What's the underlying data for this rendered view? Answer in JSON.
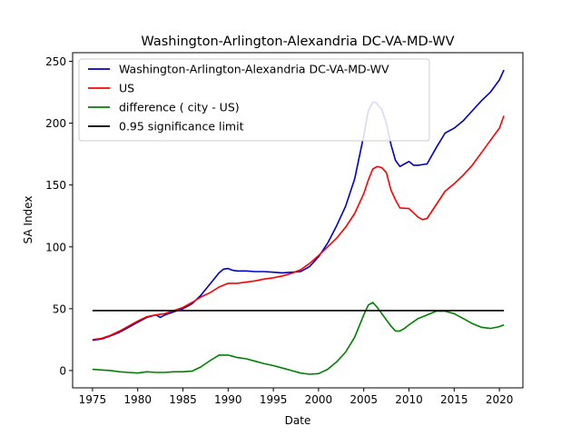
{
  "chart_data": {
    "type": "line",
    "title": "Washington-Arlington-Alexandria DC-VA-MD-WV",
    "xlabel": "Date",
    "ylabel": "SA Index",
    "xlim": [
      1972.8,
      2022.6
    ],
    "ylim": [
      -14,
      257
    ],
    "xticks": [
      "1975",
      "1980",
      "1985",
      "1990",
      "1995",
      "2000",
      "2005",
      "2010",
      "2015",
      "2020"
    ],
    "yticks": [
      "0",
      "50",
      "100",
      "150",
      "200",
      "250"
    ],
    "grid": false,
    "legend_position": "top-left",
    "series": [
      {
        "name": "Washington-Arlington-Alexandria DC-VA-MD-WV",
        "color": "#0000cc",
        "x": [
          1975,
          1976,
          1977,
          1978,
          1979,
          1980,
          1981,
          1982,
          1982.5,
          1983,
          1984,
          1985,
          1986,
          1987,
          1988,
          1989,
          1989.5,
          1990,
          1990.5,
          1991,
          1992,
          1993,
          1994,
          1995,
          1996,
          1997,
          1998,
          1999,
          2000,
          2001,
          2002,
          2003,
          2004,
          2005,
          2005.5,
          2006,
          2006.3,
          2007,
          2007.5,
          2008,
          2008.5,
          2009,
          2009.5,
          2010,
          2010.5,
          2011,
          2012,
          2013,
          2014,
          2015,
          2016,
          2017,
          2018,
          2019,
          2020,
          2020.5
        ],
        "y": [
          24.5,
          25.5,
          28,
          31,
          35,
          39,
          43,
          45,
          43,
          45,
          47.5,
          50,
          54,
          61,
          70,
          79,
          82,
          82.5,
          81,
          80.5,
          80.5,
          80,
          80,
          79.5,
          79,
          79.5,
          80,
          84,
          92,
          103,
          117,
          133,
          155,
          190,
          210,
          217,
          217,
          211,
          200,
          183,
          170,
          165,
          167,
          169,
          166,
          166,
          167,
          180,
          192,
          196,
          202,
          210,
          218,
          225,
          235,
          243
        ]
      },
      {
        "name": "US",
        "color": "#ff0000",
        "x": [
          1975,
          1976,
          1977,
          1978,
          1979,
          1980,
          1981,
          1982,
          1983,
          1984,
          1985,
          1986,
          1987,
          1988,
          1989,
          1990,
          1991,
          1992,
          1993,
          1994,
          1995,
          1996,
          1997,
          1998,
          1999,
          2000,
          2001,
          2002,
          2003,
          2004,
          2005,
          2005.5,
          2006,
          2006.5,
          2007,
          2007.5,
          2008,
          2008.5,
          2009,
          2010,
          2011,
          2011.5,
          2012,
          2013,
          2014,
          2015,
          2016,
          2017,
          2018,
          2019,
          2020,
          2020.5
        ],
        "y": [
          25,
          26,
          28.5,
          32,
          36,
          40,
          43.5,
          45,
          46,
          48.5,
          51,
          55,
          59.5,
          63,
          67.5,
          70.5,
          70.5,
          71.5,
          72.5,
          74,
          75,
          76.5,
          78.5,
          81.5,
          86.5,
          93,
          100,
          107,
          116,
          127,
          143,
          154,
          163,
          165,
          164,
          160,
          146,
          138,
          131.5,
          131,
          124,
          122,
          123,
          134,
          145,
          151,
          158,
          166,
          176,
          186,
          196,
          206
        ]
      },
      {
        "name": "difference ( city - US)",
        "color": "#008000",
        "x": [
          1975,
          1976,
          1977,
          1978,
          1979,
          1980,
          1981,
          1982,
          1983,
          1984,
          1985,
          1986,
          1987,
          1988,
          1989,
          1990,
          1991,
          1992,
          1993,
          1994,
          1995,
          1996,
          1997,
          1998,
          1999,
          2000,
          2001,
          2002,
          2003,
          2004,
          2005,
          2005.5,
          2006,
          2006.5,
          2007,
          2007.5,
          2008,
          2008.5,
          2009,
          2009.5,
          2010,
          2011,
          2012,
          2013,
          2014,
          2015,
          2016,
          2017,
          2018,
          2019,
          2020,
          2020.5
        ],
        "y": [
          1,
          0.5,
          0,
          -1,
          -1.5,
          -2,
          -1,
          -1.5,
          -1.5,
          -1,
          -1,
          -0.5,
          3,
          8,
          12.5,
          12.5,
          10.5,
          9.5,
          7.5,
          5.5,
          4,
          2,
          0,
          -2,
          -3,
          -2.5,
          1,
          7,
          15,
          27,
          45,
          53,
          55,
          51,
          46,
          41,
          36,
          32,
          32,
          34,
          37,
          42,
          45,
          48,
          48,
          46,
          42,
          38,
          35,
          34,
          35.5,
          37
        ]
      },
      {
        "name": "0.95 significance limit",
        "color": "#000000",
        "x": [
          1975,
          2020.5
        ],
        "y": [
          48.5,
          48.5
        ]
      }
    ]
  }
}
